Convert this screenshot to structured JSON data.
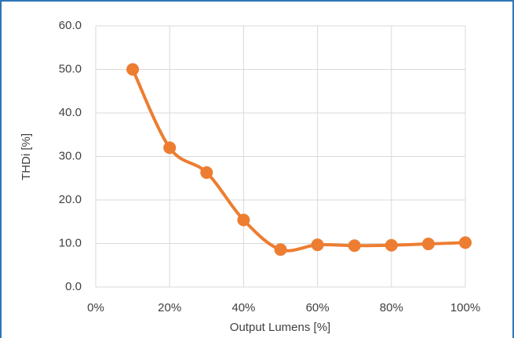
{
  "chart_data": {
    "type": "line",
    "x_label": "Output Lumens [%]",
    "y_label": "THDi [%]",
    "x": [
      10,
      20,
      30,
      40,
      50,
      60,
      70,
      80,
      90,
      100
    ],
    "series": [
      {
        "name": "THDi",
        "color": "#ed7d31",
        "values": [
          50,
          32,
          26.3,
          15.4,
          8.6,
          9.7,
          9.5,
          9.6,
          9.9,
          10.2
        ]
      }
    ],
    "xlim": [
      0,
      100
    ],
    "xticks": [
      {
        "value": 0,
        "label": "0%"
      },
      {
        "value": 20,
        "label": "20%"
      },
      {
        "value": 40,
        "label": "40%"
      },
      {
        "value": 60,
        "label": "60%"
      },
      {
        "value": 80,
        "label": "80%"
      },
      {
        "value": 100,
        "label": "100%"
      }
    ],
    "ylim": [
      0,
      60
    ],
    "yticks": [
      {
        "value": 0,
        "label": "0.0"
      },
      {
        "value": 10,
        "label": "10.0"
      },
      {
        "value": 20,
        "label": "20.0"
      },
      {
        "value": 30,
        "label": "30.0"
      },
      {
        "value": 40,
        "label": "40.0"
      },
      {
        "value": 50,
        "label": "50.0"
      },
      {
        "value": 60,
        "label": "60.0"
      }
    ],
    "grid": true,
    "smooth": true
  }
}
